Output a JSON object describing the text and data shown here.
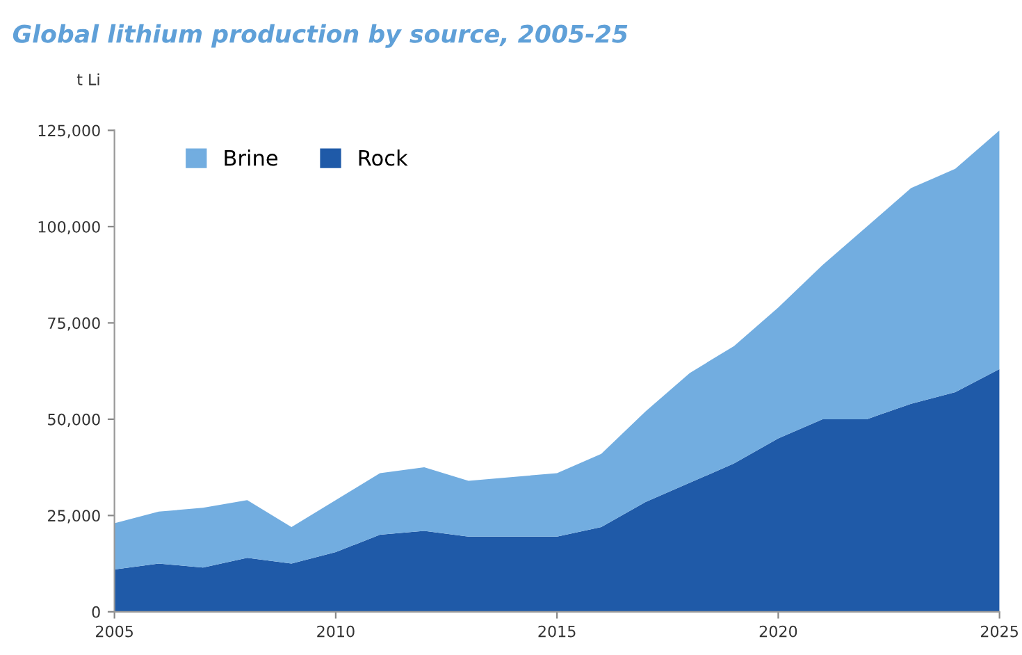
{
  "chart_data": {
    "type": "area",
    "stacked": true,
    "title": "Global lithium production by source, 2005-25",
    "ylabel": "t Li",
    "x": [
      2005,
      2006,
      2007,
      2008,
      2009,
      2010,
      2011,
      2012,
      2013,
      2014,
      2015,
      2016,
      2017,
      2018,
      2019,
      2020,
      2021,
      2022,
      2023,
      2024,
      2025
    ],
    "series": [
      {
        "name": "Rock",
        "color": "#1f5aa8",
        "values": [
          11000,
          12500,
          11500,
          14000,
          12500,
          15500,
          20000,
          21000,
          19500,
          19500,
          19500,
          22000,
          28500,
          33500,
          38500,
          45000,
          50000,
          50000,
          54000,
          57000,
          63000
        ]
      },
      {
        "name": "Brine",
        "color": "#72ade0",
        "values": [
          12000,
          13500,
          15500,
          15000,
          9500,
          13500,
          16000,
          16500,
          14500,
          15500,
          16500,
          19000,
          23500,
          28500,
          30500,
          34000,
          40000,
          50000,
          56000,
          58000,
          62000
        ]
      }
    ],
    "xlim": [
      2005,
      2025
    ],
    "xticks": [
      2005,
      2010,
      2015,
      2020,
      2025
    ],
    "ylim": [
      0,
      125000
    ],
    "yticks": [
      0,
      {
        "value": 25000,
        "label": "25,000"
      },
      {
        "value": 50000,
        "label": "50,000"
      },
      {
        "value": 75000,
        "label": "75,000"
      },
      {
        "value": 100000,
        "label": "100,000"
      },
      {
        "value": 125000,
        "label": "125,000"
      }
    ],
    "grid": false,
    "legend": "top left"
  }
}
